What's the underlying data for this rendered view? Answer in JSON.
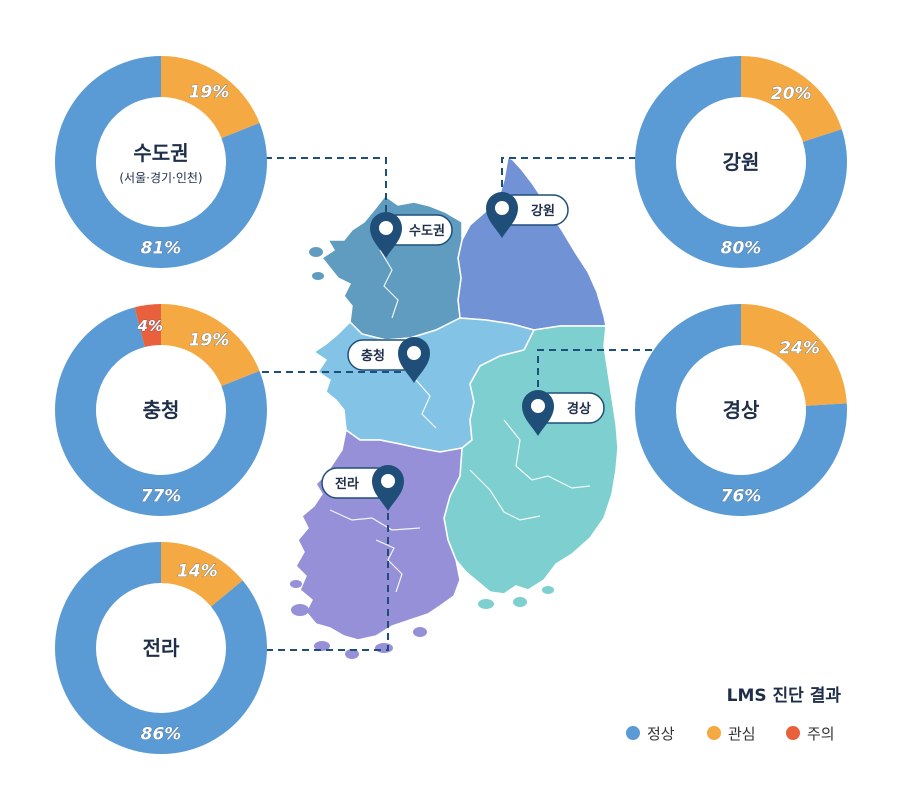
{
  "colors": {
    "normal": "#5b9bd5",
    "interest": "#f4a942",
    "caution": "#e8603c",
    "sudogwon_region": "#5f9cbf",
    "gangwon_region": "#7193d6",
    "chungcheong_region": "#83c3e6",
    "gyeongsang_region": "#7ecfcf",
    "jeolla_region": "#9590d8",
    "pin": "#1f4e79"
  },
  "regions": [
    {
      "id": "sudogwon",
      "name": "수도권",
      "subtitle": "(서울·경기·인천)",
      "pin_label": "수도권",
      "normal": 81,
      "interest": 19,
      "caution": 0,
      "normal_label": "81%",
      "interest_label": "19%",
      "caution_label": ""
    },
    {
      "id": "gangwon",
      "name": "강원",
      "subtitle": "",
      "pin_label": "강원",
      "normal": 80,
      "interest": 20,
      "caution": 0,
      "normal_label": "80%",
      "interest_label": "20%",
      "caution_label": ""
    },
    {
      "id": "chungcheong",
      "name": "충청",
      "subtitle": "",
      "pin_label": "충청",
      "normal": 77,
      "interest": 19,
      "caution": 4,
      "normal_label": "77%",
      "interest_label": "19%",
      "caution_label": "4%"
    },
    {
      "id": "gyeongsang",
      "name": "경상",
      "subtitle": "",
      "pin_label": "경상",
      "normal": 76,
      "interest": 24,
      "caution": 0,
      "normal_label": "76%",
      "interest_label": "24%",
      "caution_label": ""
    },
    {
      "id": "jeolla",
      "name": "전라",
      "subtitle": "",
      "pin_label": "전라",
      "normal": 86,
      "interest": 14,
      "caution": 0,
      "normal_label": "86%",
      "interest_label": "14%",
      "caution_label": ""
    }
  ],
  "legend": {
    "title": "LMS 진단 결과",
    "items": [
      {
        "label": "정상",
        "color_key": "normal"
      },
      {
        "label": "관심",
        "color_key": "interest"
      },
      {
        "label": "주의",
        "color_key": "caution"
      }
    ]
  }
}
